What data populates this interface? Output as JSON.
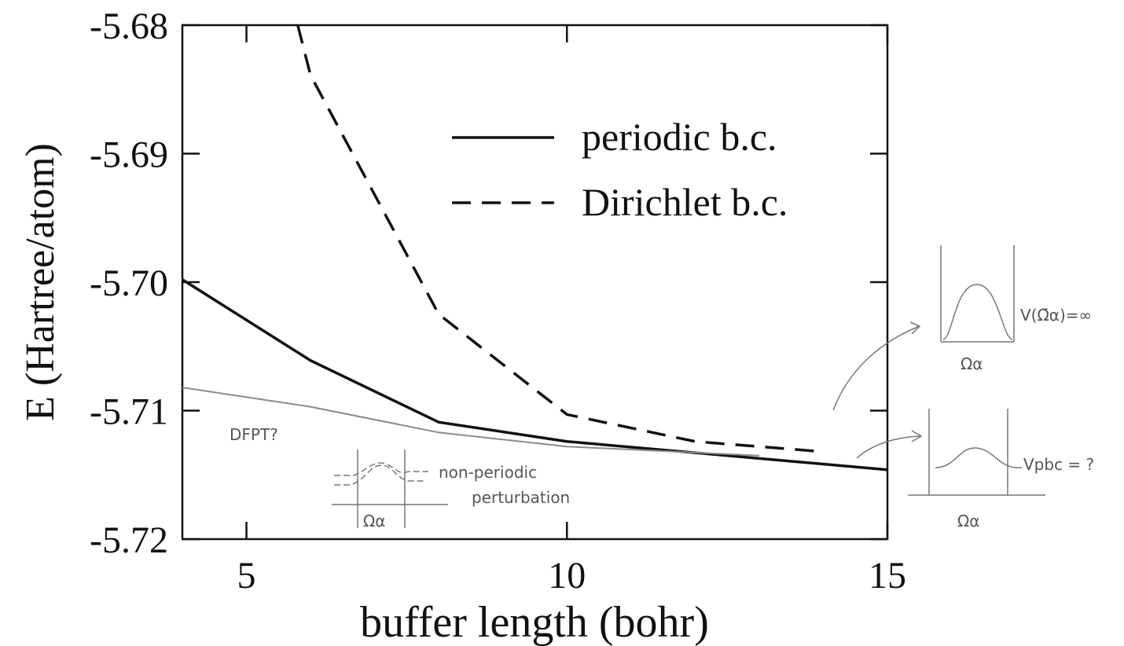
{
  "chart_data": {
    "type": "line",
    "x_label": "buffer length (bohr)",
    "y_label": "E (Hartree/atom)",
    "xlim": [
      4,
      15
    ],
    "xticks": [
      5,
      10,
      15
    ],
    "ylim": [
      -5.72,
      -5.68
    ],
    "yticks": [
      -5.72,
      {
        "value": -5.71,
        "label": "-5.71"
      },
      {
        "value": -5.7,
        "label": "-5.70"
      },
      -5.69,
      -5.68
    ],
    "legend": "upper right",
    "series": [
      {
        "name": "periodic b.c.",
        "color": "#111111",
        "dashed": false,
        "x": [
          4,
          6,
          8,
          10,
          15
        ],
        "values": [
          -5.6998,
          -5.7061,
          -5.7109,
          -5.7124,
          -5.7146
        ]
      },
      {
        "name": "Dirichlet b.c.",
        "color": "#111111",
        "dashed": true,
        "x": [
          5.8,
          6,
          8,
          10,
          12,
          14
        ],
        "values": [
          -5.68,
          -5.6839,
          -5.7025,
          -5.7103,
          -5.7124,
          -5.7132
        ]
      },
      {
        "color": "#8a8a8a",
        "dashed": false,
        "x": [
          4,
          6,
          8,
          10,
          13
        ],
        "values": [
          -5.7082,
          -5.7097,
          -5.7117,
          -5.7128,
          -5.7135
        ]
      }
    ],
    "annotations": [
      "DFPT?",
      "non-periodic",
      "perturbation",
      "Ωα",
      "V(Ω̄α)=∞",
      "Ωα",
      "Vpbc = ?",
      "Ωα"
    ]
  }
}
